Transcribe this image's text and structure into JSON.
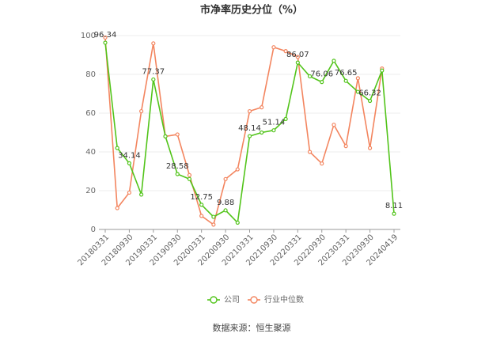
{
  "chart_data": {
    "type": "line",
    "title": "市净率历史分位（%）",
    "source": "数据来源：恒生聚源",
    "categories": [
      "20180331",
      null,
      "20180930",
      null,
      "20190331",
      null,
      "20190930",
      null,
      "20200331",
      null,
      "20200930",
      null,
      "20210331",
      null,
      "20210930",
      null,
      "20220331",
      null,
      "20220930",
      null,
      "20230331",
      null,
      "20230930",
      null,
      "20240419"
    ],
    "series": [
      {
        "name": "公司",
        "color": "#52c41a",
        "values": [
          96.34,
          42,
          34.14,
          18,
          77.37,
          48,
          28.58,
          26,
          12.75,
          6.5,
          9.88,
          3.5,
          48.14,
          50,
          51.14,
          57,
          86.07,
          79,
          76.06,
          87,
          76.65,
          71,
          66.32,
          82,
          8.11
        ]
      },
      {
        "name": "行业中位数",
        "color": "#f3855f",
        "values": [
          99,
          11,
          19,
          61,
          96,
          48,
          49,
          28,
          7,
          2.5,
          26,
          31,
          61,
          63,
          94,
          92,
          89,
          40,
          34,
          54,
          43,
          78,
          42,
          83,
          null
        ]
      }
    ],
    "ylim": [
      0,
      100
    ],
    "yticks": [
      0,
      20,
      40,
      60,
      80,
      100
    ],
    "grid": true,
    "legend": "bottom"
  }
}
